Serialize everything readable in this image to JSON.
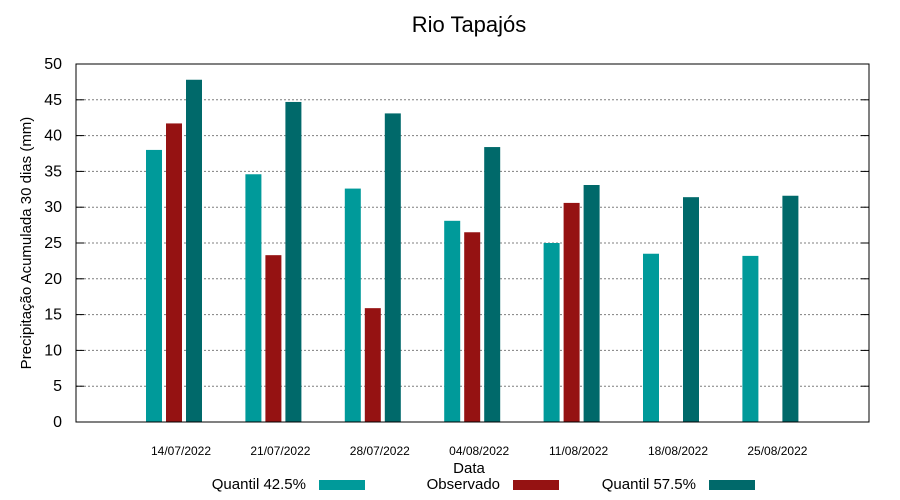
{
  "chart_data": {
    "type": "bar",
    "title": "Rio Tapajós",
    "xlabel": "Data",
    "ylabel": "Precipitação Acumulada 30 dias (mm)",
    "ylim": [
      0,
      50
    ],
    "yticks": [
      "0",
      "5",
      "10",
      "15",
      "20",
      "25",
      "30",
      "35",
      "40",
      "45",
      "50"
    ],
    "grid": true,
    "categories": [
      "14/07/2022",
      "21/07/2022",
      "28/07/2022",
      "04/08/2022",
      "11/08/2022",
      "18/08/2022",
      "25/08/2022"
    ],
    "series": [
      {
        "name": "Quantil 42.5%",
        "color": "#009a9a",
        "values": [
          38.0,
          34.6,
          32.6,
          28.1,
          25.0,
          23.5,
          23.2
        ]
      },
      {
        "name": "Observado",
        "color": "#951212",
        "values": [
          41.7,
          23.3,
          15.9,
          26.5,
          30.6,
          null,
          null
        ]
      },
      {
        "name": "Quantil 57.5%",
        "color": "#00696a",
        "values": [
          47.8,
          44.7,
          43.1,
          38.4,
          33.1,
          31.4,
          31.6
        ]
      }
    ],
    "legend_position": "bottom"
  }
}
